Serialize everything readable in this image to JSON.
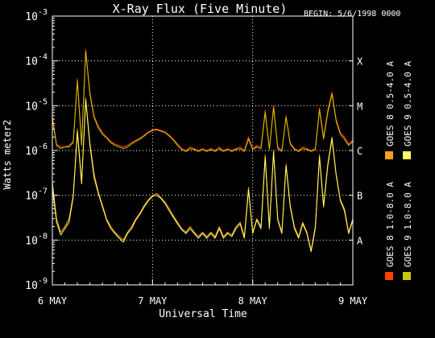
{
  "chart_data": {
    "type": "line",
    "title": "X-Ray Flux (Five Minute)",
    "begin_label": "BEGIN: 5/6/1998 0000",
    "xlabel": "Universal Time",
    "ylabel": "Watts meter2",
    "y_scale": "log",
    "ylim": [
      1e-09,
      0.001
    ],
    "y_ticks": [
      {
        "base": "10",
        "exp": "-9",
        "value": 1e-09
      },
      {
        "base": "10",
        "exp": "-8",
        "value": 1e-08
      },
      {
        "base": "10",
        "exp": "-7",
        "value": 1e-07
      },
      {
        "base": "10",
        "exp": "-6",
        "value": 1e-06
      },
      {
        "base": "10",
        "exp": "-5",
        "value": 1e-05
      },
      {
        "base": "10",
        "exp": "-4",
        "value": 0.0001
      },
      {
        "base": "10",
        "exp": "-3",
        "value": 0.001
      }
    ],
    "xlim": [
      "1998-05-06 00:00",
      "1998-05-09 00:00"
    ],
    "x_ticks": [
      {
        "label": "6 MAY",
        "at": "1998-05-06 00:00"
      },
      {
        "label": "7 MAY",
        "at": "1998-05-07 00:00"
      },
      {
        "label": "8 MAY",
        "at": "1998-05-08 00:00"
      },
      {
        "label": "9 MAY",
        "at": "1998-05-09 00:00"
      }
    ],
    "flare_classes": [
      {
        "label": "A",
        "value": 1e-08
      },
      {
        "label": "B",
        "value": 1e-07
      },
      {
        "label": "C",
        "value": 1e-06
      },
      {
        "label": "M",
        "value": 1e-05
      },
      {
        "label": "X",
        "value": 0.0001
      }
    ],
    "grid": "dotted",
    "x": [
      "1998-05-06 00:00",
      "1998-05-06 01:00",
      "1998-05-06 02:00",
      "1998-05-06 03:00",
      "1998-05-06 04:00",
      "1998-05-06 05:00",
      "1998-05-06 06:00",
      "1998-05-06 07:00",
      "1998-05-06 08:00",
      "1998-05-06 09:00",
      "1998-05-06 10:00",
      "1998-05-06 11:00",
      "1998-05-06 12:00",
      "1998-05-06 13:00",
      "1998-05-06 14:00",
      "1998-05-06 15:00",
      "1998-05-06 16:00",
      "1998-05-06 17:00",
      "1998-05-06 18:00",
      "1998-05-06 19:00",
      "1998-05-06 20:00",
      "1998-05-06 21:00",
      "1998-05-06 22:00",
      "1998-05-06 23:00",
      "1998-05-07 00:00",
      "1998-05-07 01:00",
      "1998-05-07 02:00",
      "1998-05-07 03:00",
      "1998-05-07 04:00",
      "1998-05-07 05:00",
      "1998-05-07 06:00",
      "1998-05-07 07:00",
      "1998-05-07 08:00",
      "1998-05-07 09:00",
      "1998-05-07 10:00",
      "1998-05-07 11:00",
      "1998-05-07 12:00",
      "1998-05-07 13:00",
      "1998-05-07 14:00",
      "1998-05-07 15:00",
      "1998-05-07 16:00",
      "1998-05-07 17:00",
      "1998-05-07 18:00",
      "1998-05-07 19:00",
      "1998-05-07 20:00",
      "1998-05-07 21:00",
      "1998-05-07 22:00",
      "1998-05-07 23:00",
      "1998-05-08 00:00",
      "1998-05-08 01:00",
      "1998-05-08 02:00",
      "1998-05-08 03:00",
      "1998-05-08 04:00",
      "1998-05-08 05:00",
      "1998-05-08 06:00",
      "1998-05-08 07:00",
      "1998-05-08 08:00",
      "1998-05-08 09:00",
      "1998-05-08 10:00",
      "1998-05-08 11:00",
      "1998-05-08 12:00",
      "1998-05-08 13:00",
      "1998-05-08 14:00",
      "1998-05-08 15:00",
      "1998-05-08 16:00",
      "1998-05-08 17:00",
      "1998-05-08 18:00",
      "1998-05-08 19:00",
      "1998-05-08 20:00",
      "1998-05-08 21:00",
      "1998-05-08 22:00",
      "1998-05-08 23:00",
      "1998-05-09 00:00"
    ],
    "series": [
      {
        "name": "GOES 8 1.0-8.0 A",
        "color": "#ff4000",
        "values": [
          6e-06,
          1.4e-06,
          1.2e-06,
          1.2e-06,
          1.3e-06,
          1.6e-06,
          4e-05,
          1.4e-06,
          0.00018,
          2e-05,
          6e-06,
          3.5e-06,
          2.5e-06,
          2e-06,
          1.6e-06,
          1.4e-06,
          1.3e-06,
          1.2e-06,
          1.3e-06,
          1.5e-06,
          1.7e-06,
          1.9e-06,
          2.2e-06,
          2.6e-06,
          2.9e-06,
          3e-06,
          2.8e-06,
          2.6e-06,
          2.2e-06,
          1.8e-06,
          1.4e-06,
          1.1e-06,
          1e-06,
          1.2e-06,
          1.1e-06,
          1e-06,
          1.1e-06,
          1e-06,
          1.1e-06,
          1e-06,
          1.2e-06,
          1e-06,
          1.1e-06,
          1e-06,
          1.1e-06,
          1.2e-06,
          1e-06,
          2e-06,
          1.1e-06,
          1.3e-06,
          1.2e-06,
          8e-06,
          1.1e-06,
          1e-05,
          1.2e-06,
          1e-06,
          6e-06,
          1.5e-06,
          1.1e-06,
          1e-06,
          1.2e-06,
          1.1e-06,
          1e-06,
          1.1e-06,
          9e-06,
          2e-06,
          8e-06,
          2e-05,
          5e-06,
          2.5e-06,
          2e-06,
          1.4e-06,
          1.7e-06
        ]
      },
      {
        "name": "GOES 8 0.5-4.0 A",
        "color": "#ffa020",
        "values": [
          2e-07,
          3e-08,
          1.5e-08,
          2e-08,
          3e-08,
          1e-07,
          3e-06,
          2e-07,
          1.5e-05,
          1.5e-06,
          3e-07,
          1.2e-07,
          6e-08,
          3e-08,
          2e-08,
          1.5e-08,
          1.2e-08,
          1e-08,
          1.5e-08,
          2e-08,
          3e-08,
          4e-08,
          6e-08,
          8e-08,
          1e-07,
          1.1e-07,
          9e-08,
          7e-08,
          5e-08,
          3.5e-08,
          2.5e-08,
          1.8e-08,
          1.5e-08,
          2e-08,
          1.5e-08,
          1.2e-08,
          1.5e-08,
          1.2e-08,
          1.5e-08,
          1.2e-08,
          2e-08,
          1.2e-08,
          1.5e-08,
          1.3e-08,
          2e-08,
          2.5e-08,
          1.2e-08,
          1.5e-07,
          1.5e-08,
          3e-08,
          2e-08,
          8e-07,
          2e-08,
          1e-06,
          3e-08,
          1.5e-08,
          5e-07,
          6e-08,
          2e-08,
          1.2e-08,
          2.5e-08,
          1.5e-08,
          6e-09,
          2e-08,
          8e-07,
          6e-08,
          5e-07,
          2e-06,
          3e-07,
          8e-08,
          5e-08,
          1.5e-08,
          3e-08
        ]
      },
      {
        "name": "GOES 9 1.0-8.0 A",
        "color": "#c8c800",
        "values": [
          5e-06,
          1.3e-06,
          1.1e-06,
          1.2e-06,
          1.2e-06,
          1.5e-06,
          3.5e-05,
          1.3e-06,
          0.00016,
          1.8e-05,
          5.5e-06,
          3.2e-06,
          2.3e-06,
          1.9e-06,
          1.5e-06,
          1.3e-06,
          1.2e-06,
          1.1e-06,
          1.2e-06,
          1.4e-06,
          1.6e-06,
          1.8e-06,
          2.1e-06,
          2.5e-06,
          2.8e-06,
          2.9e-06,
          2.7e-06,
          2.5e-06,
          2.1e-06,
          1.7e-06,
          1.3e-06,
          1.05e-06,
          9.5e-07,
          1.1e-06,
          1.05e-06,
          9.5e-07,
          1.05e-06,
          9.5e-07,
          1.05e-06,
          9.5e-07,
          1.1e-06,
          9.5e-07,
          1.05e-06,
          9.5e-07,
          1.05e-06,
          1.1e-06,
          9.5e-07,
          1.8e-06,
          1.05e-06,
          1.2e-06,
          1.1e-06,
          7e-06,
          1.05e-06,
          9e-06,
          1.1e-06,
          9.5e-07,
          5.5e-06,
          1.4e-06,
          1.05e-06,
          9.5e-07,
          1.1e-06,
          1.05e-06,
          9.5e-07,
          1.05e-06,
          8e-06,
          1.8e-06,
          7e-06,
          1.8e-05,
          4.5e-06,
          2.3e-06,
          1.8e-06,
          1.3e-06,
          1.6e-06
        ]
      },
      {
        "name": "GOES 9 0.5-4.0 A",
        "color": "#ffff60",
        "values": [
          1.5e-07,
          2.5e-08,
          1.3e-08,
          1.8e-08,
          2.5e-08,
          9e-08,
          2.5e-06,
          1.8e-07,
          1.3e-05,
          1.3e-06,
          2.5e-07,
          1.1e-07,
          5.5e-08,
          2.8e-08,
          1.8e-08,
          1.4e-08,
          1.1e-08,
          9e-09,
          1.4e-08,
          1.8e-08,
          2.8e-08,
          3.8e-08,
          5.5e-08,
          7.5e-08,
          9.5e-08,
          1e-07,
          8.5e-08,
          6.5e-08,
          4.5e-08,
          3.2e-08,
          2.3e-08,
          1.7e-08,
          1.4e-08,
          1.8e-08,
          1.4e-08,
          1.1e-08,
          1.4e-08,
          1.1e-08,
          1.4e-08,
          1.1e-08,
          1.8e-08,
          1.1e-08,
          1.4e-08,
          1.2e-08,
          1.8e-08,
          2.3e-08,
          1.1e-08,
          1.3e-07,
          1.4e-08,
          2.8e-08,
          1.8e-08,
          7e-07,
          1.8e-08,
          9e-07,
          2.8e-08,
          1.4e-08,
          4.5e-07,
          5.5e-08,
          1.8e-08,
          1.1e-08,
          2.3e-08,
          1.4e-08,
          5.5e-09,
          1.8e-08,
          7e-07,
          5.5e-08,
          4.5e-07,
          1.8e-06,
          2.8e-07,
          7.5e-08,
          4.5e-08,
          1.4e-08,
          2.8e-08
        ]
      }
    ]
  }
}
